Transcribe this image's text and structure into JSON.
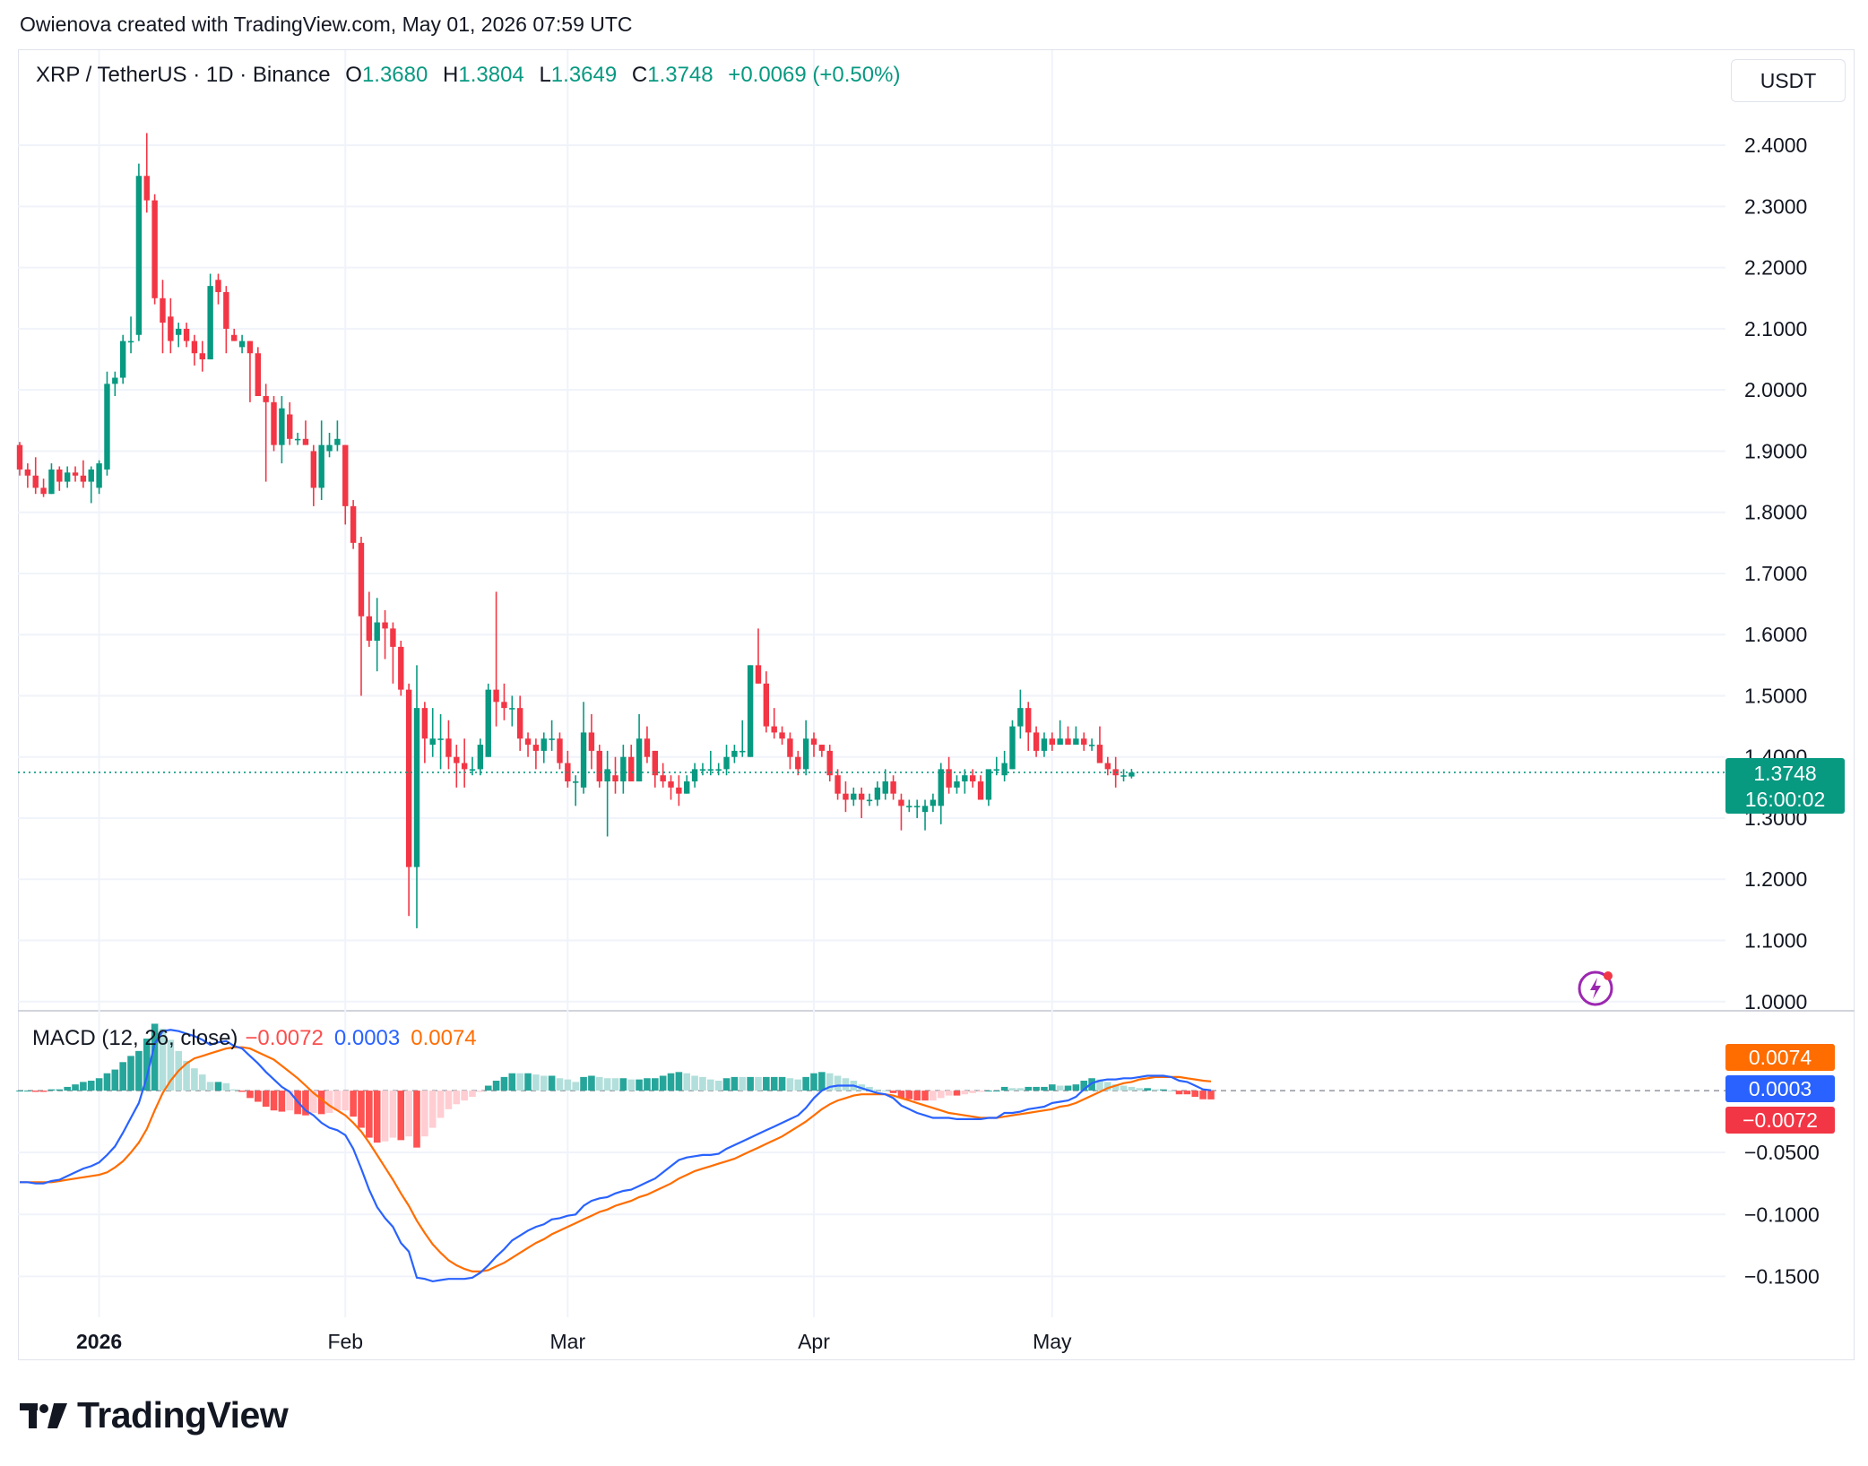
{
  "credit": "Owienova created with TradingView.com, May 01, 2026 07:59 UTC",
  "header": {
    "symbol": "XRP / TetherUS · 1D · Binance",
    "o_label": "O",
    "o_value": "1.3680",
    "h_label": "H",
    "h_value": "1.3804",
    "l_label": "L",
    "l_value": "1.3649",
    "c_label": "C",
    "c_value": "1.3748",
    "change": "+0.0069 (+0.50%)"
  },
  "currency": "USDT",
  "macd_header": {
    "title": "MACD (12, 26, close)",
    "hist": "−0.0072",
    "macd": "0.0003",
    "signal": "0.0074"
  },
  "last_price": {
    "price": "1.3748",
    "countdown": "16:00:02"
  },
  "macd_badges": {
    "signal": "0.0074",
    "macd": "0.0003",
    "hist": "−0.0072"
  },
  "brand": "TradingView",
  "colors": {
    "up": "#089981",
    "down": "#f23645",
    "macd": "#2962ff",
    "signal": "#ff6d00",
    "hist_up_strong": "#26a69a",
    "hist_up_weak": "#b2dfdb",
    "hist_down_strong": "#ff5252",
    "hist_down_weak": "#ffcdd2"
  },
  "chart_data": {
    "type": "candlestick",
    "title": "XRP / TetherUS · 1D · Binance",
    "price_axis": {
      "ticks": [
        "2.4000",
        "2.3000",
        "2.2000",
        "2.1000",
        "2.0000",
        "1.9000",
        "1.8000",
        "1.7000",
        "1.6000",
        "1.5000",
        "1.4000",
        "1.3000",
        "1.2000",
        "1.1000",
        "1.0000"
      ],
      "range": [
        0.985,
        2.535
      ]
    },
    "macd_axis": {
      "ticks": [
        "−0.0500",
        "−0.1000",
        "−0.1500"
      ],
      "range": [
        -0.183,
        0.063
      ]
    },
    "x_ticks": [
      {
        "label": "2026",
        "date": "2026-01-01",
        "bold": true
      },
      {
        "label": "Feb",
        "date": "2026-02-01"
      },
      {
        "label": "Mar",
        "date": "2026-03-01"
      },
      {
        "label": "Apr",
        "date": "2026-04-01"
      },
      {
        "label": "May",
        "date": "2026-05-01"
      }
    ],
    "first_date": "2025-12-22",
    "ohlc": [
      [
        1.91,
        1.915,
        1.86,
        1.87
      ],
      [
        1.87,
        1.88,
        1.84,
        1.86
      ],
      [
        1.86,
        1.89,
        1.83,
        1.84
      ],
      [
        1.84,
        1.855,
        1.825,
        1.83
      ],
      [
        1.83,
        1.88,
        1.83,
        1.87
      ],
      [
        1.87,
        1.875,
        1.835,
        1.85
      ],
      [
        1.85,
        1.875,
        1.84,
        1.865
      ],
      [
        1.865,
        1.875,
        1.85,
        1.86
      ],
      [
        1.86,
        1.885,
        1.84,
        1.85
      ],
      [
        1.85,
        1.875,
        1.815,
        1.87
      ],
      [
        1.84,
        1.885,
        1.83,
        1.88
      ],
      [
        1.87,
        2.03,
        1.86,
        2.01
      ],
      [
        2.01,
        2.03,
        1.99,
        2.02
      ],
      [
        2.02,
        2.09,
        2.01,
        2.08
      ],
      [
        2.08,
        2.12,
        2.06,
        2.08
      ],
      [
        2.09,
        2.37,
        2.08,
        2.35
      ],
      [
        2.35,
        2.42,
        2.29,
        2.31
      ],
      [
        2.31,
        2.32,
        2.14,
        2.15
      ],
      [
        2.15,
        2.18,
        2.06,
        2.11
      ],
      [
        2.12,
        2.15,
        2.06,
        2.08
      ],
      [
        2.09,
        2.11,
        2.07,
        2.1
      ],
      [
        2.1,
        2.11,
        2.07,
        2.08
      ],
      [
        2.08,
        2.09,
        2.04,
        2.06
      ],
      [
        2.06,
        2.08,
        2.03,
        2.05
      ],
      [
        2.05,
        2.19,
        2.05,
        2.17
      ],
      [
        2.18,
        2.19,
        2.14,
        2.16
      ],
      [
        2.16,
        2.17,
        2.06,
        2.1
      ],
      [
        2.09,
        2.1,
        2.08,
        2.08
      ],
      [
        2.07,
        2.09,
        2.06,
        2.08
      ],
      [
        2.08,
        2.08,
        1.98,
        2.06
      ],
      [
        2.06,
        2.07,
        1.99,
        1.99
      ],
      [
        1.99,
        2.01,
        1.85,
        1.98
      ],
      [
        1.98,
        1.99,
        1.9,
        1.91
      ],
      [
        1.91,
        1.99,
        1.88,
        1.97
      ],
      [
        1.96,
        1.98,
        1.91,
        1.92
      ],
      [
        1.92,
        1.93,
        1.91,
        1.92
      ],
      [
        1.92,
        1.95,
        1.91,
        1.91
      ],
      [
        1.9,
        1.91,
        1.81,
        1.84
      ],
      [
        1.84,
        1.95,
        1.82,
        1.91
      ],
      [
        1.9,
        1.93,
        1.89,
        1.91
      ],
      [
        1.91,
        1.95,
        1.9,
        1.92
      ],
      [
        1.91,
        1.91,
        1.78,
        1.81
      ],
      [
        1.81,
        1.82,
        1.74,
        1.75
      ],
      [
        1.75,
        1.76,
        1.5,
        1.63
      ],
      [
        1.63,
        1.67,
        1.58,
        1.59
      ],
      [
        1.59,
        1.66,
        1.54,
        1.62
      ],
      [
        1.62,
        1.64,
        1.56,
        1.61
      ],
      [
        1.61,
        1.62,
        1.52,
        1.58
      ],
      [
        1.58,
        1.59,
        1.5,
        1.51
      ],
      [
        1.51,
        1.52,
        1.14,
        1.22
      ],
      [
        1.22,
        1.55,
        1.12,
        1.48
      ],
      [
        1.48,
        1.49,
        1.39,
        1.43
      ],
      [
        1.42,
        1.48,
        1.4,
        1.43
      ],
      [
        1.43,
        1.47,
        1.38,
        1.43
      ],
      [
        1.43,
        1.46,
        1.38,
        1.4
      ],
      [
        1.4,
        1.42,
        1.35,
        1.39
      ],
      [
        1.39,
        1.43,
        1.35,
        1.38
      ],
      [
        1.38,
        1.4,
        1.37,
        1.38
      ],
      [
        1.38,
        1.43,
        1.37,
        1.42
      ],
      [
        1.4,
        1.52,
        1.4,
        1.51
      ],
      [
        1.51,
        1.67,
        1.45,
        1.49
      ],
      [
        1.49,
        1.52,
        1.46,
        1.48
      ],
      [
        1.48,
        1.5,
        1.45,
        1.48
      ],
      [
        1.48,
        1.5,
        1.41,
        1.43
      ],
      [
        1.43,
        1.44,
        1.4,
        1.42
      ],
      [
        1.42,
        1.43,
        1.38,
        1.41
      ],
      [
        1.41,
        1.44,
        1.39,
        1.43
      ],
      [
        1.43,
        1.46,
        1.41,
        1.43
      ],
      [
        1.43,
        1.44,
        1.38,
        1.39
      ],
      [
        1.39,
        1.41,
        1.35,
        1.36
      ],
      [
        1.36,
        1.37,
        1.32,
        1.36
      ],
      [
        1.35,
        1.49,
        1.34,
        1.44
      ],
      [
        1.44,
        1.47,
        1.38,
        1.41
      ],
      [
        1.41,
        1.42,
        1.35,
        1.36
      ],
      [
        1.36,
        1.41,
        1.27,
        1.38
      ],
      [
        1.37,
        1.4,
        1.34,
        1.36
      ],
      [
        1.36,
        1.42,
        1.34,
        1.4
      ],
      [
        1.4,
        1.42,
        1.36,
        1.36
      ],
      [
        1.36,
        1.47,
        1.36,
        1.43
      ],
      [
        1.43,
        1.45,
        1.39,
        1.4
      ],
      [
        1.41,
        1.41,
        1.35,
        1.37
      ],
      [
        1.37,
        1.39,
        1.35,
        1.36
      ],
      [
        1.36,
        1.37,
        1.33,
        1.35
      ],
      [
        1.35,
        1.37,
        1.32,
        1.34
      ],
      [
        1.34,
        1.37,
        1.34,
        1.36
      ],
      [
        1.36,
        1.39,
        1.35,
        1.38
      ],
      [
        1.38,
        1.39,
        1.37,
        1.38
      ],
      [
        1.38,
        1.41,
        1.37,
        1.38
      ],
      [
        1.38,
        1.39,
        1.37,
        1.38
      ],
      [
        1.38,
        1.42,
        1.37,
        1.4
      ],
      [
        1.4,
        1.42,
        1.39,
        1.41
      ],
      [
        1.41,
        1.46,
        1.4,
        1.41
      ],
      [
        1.4,
        1.55,
        1.4,
        1.55
      ],
      [
        1.55,
        1.61,
        1.52,
        1.52
      ],
      [
        1.52,
        1.54,
        1.44,
        1.45
      ],
      [
        1.45,
        1.48,
        1.43,
        1.44
      ],
      [
        1.44,
        1.45,
        1.42,
        1.43
      ],
      [
        1.43,
        1.44,
        1.38,
        1.4
      ],
      [
        1.4,
        1.41,
        1.37,
        1.38
      ],
      [
        1.38,
        1.46,
        1.37,
        1.43
      ],
      [
        1.43,
        1.44,
        1.4,
        1.42
      ],
      [
        1.42,
        1.42,
        1.4,
        1.41
      ],
      [
        1.41,
        1.42,
        1.36,
        1.37
      ],
      [
        1.37,
        1.38,
        1.33,
        1.34
      ],
      [
        1.34,
        1.36,
        1.31,
        1.33
      ],
      [
        1.33,
        1.35,
        1.32,
        1.34
      ],
      [
        1.34,
        1.35,
        1.3,
        1.33
      ],
      [
        1.33,
        1.34,
        1.32,
        1.33
      ],
      [
        1.33,
        1.36,
        1.32,
        1.35
      ],
      [
        1.34,
        1.38,
        1.33,
        1.36
      ],
      [
        1.36,
        1.37,
        1.33,
        1.34
      ],
      [
        1.33,
        1.34,
        1.28,
        1.32
      ],
      [
        1.32,
        1.33,
        1.31,
        1.32
      ],
      [
        1.32,
        1.33,
        1.3,
        1.32
      ],
      [
        1.31,
        1.33,
        1.28,
        1.32
      ],
      [
        1.32,
        1.34,
        1.31,
        1.33
      ],
      [
        1.32,
        1.39,
        1.29,
        1.38
      ],
      [
        1.38,
        1.4,
        1.34,
        1.35
      ],
      [
        1.35,
        1.37,
        1.34,
        1.36
      ],
      [
        1.36,
        1.38,
        1.34,
        1.37
      ],
      [
        1.37,
        1.38,
        1.35,
        1.36
      ],
      [
        1.36,
        1.37,
        1.33,
        1.33
      ],
      [
        1.33,
        1.37,
        1.32,
        1.38
      ],
      [
        1.38,
        1.4,
        1.37,
        1.38
      ],
      [
        1.37,
        1.41,
        1.36,
        1.39
      ],
      [
        1.38,
        1.46,
        1.38,
        1.45
      ],
      [
        1.45,
        1.51,
        1.43,
        1.48
      ],
      [
        1.48,
        1.49,
        1.41,
        1.44
      ],
      [
        1.44,
        1.45,
        1.4,
        1.41
      ],
      [
        1.41,
        1.44,
        1.4,
        1.43
      ],
      [
        1.43,
        1.44,
        1.41,
        1.42
      ],
      [
        1.42,
        1.46,
        1.42,
        1.43
      ],
      [
        1.43,
        1.45,
        1.42,
        1.42
      ],
      [
        1.42,
        1.45,
        1.42,
        1.43
      ],
      [
        1.43,
        1.44,
        1.41,
        1.42
      ],
      [
        1.42,
        1.43,
        1.41,
        1.42
      ],
      [
        1.42,
        1.45,
        1.39,
        1.39
      ],
      [
        1.39,
        1.4,
        1.37,
        1.38
      ],
      [
        1.38,
        1.4,
        1.35,
        1.37
      ],
      [
        1.37,
        1.38,
        1.36,
        1.37
      ],
      [
        1.368,
        1.3804,
        1.3649,
        1.3748
      ]
    ],
    "macd_series": {
      "macd": [
        -0.074,
        -0.074,
        -0.075,
        -0.075,
        -0.073,
        -0.072,
        -0.069,
        -0.066,
        -0.063,
        -0.061,
        -0.058,
        -0.052,
        -0.045,
        -0.034,
        -0.022,
        -0.01,
        0.011,
        0.038,
        0.048,
        0.049,
        0.048,
        0.046,
        0.044,
        0.041,
        0.037,
        0.039,
        0.04,
        0.036,
        0.034,
        0.028,
        0.022,
        0.015,
        0.009,
        0.003,
        -0.001,
        -0.009,
        -0.016,
        -0.02,
        -0.026,
        -0.03,
        -0.032,
        -0.036,
        -0.047,
        -0.063,
        -0.08,
        -0.094,
        -0.103,
        -0.11,
        -0.123,
        -0.13,
        -0.151,
        -0.152,
        -0.154,
        -0.153,
        -0.152,
        -0.152,
        -0.152,
        -0.151,
        -0.147,
        -0.141,
        -0.134,
        -0.128,
        -0.121,
        -0.117,
        -0.113,
        -0.11,
        -0.108,
        -0.104,
        -0.103,
        -0.101,
        -0.1,
        -0.093,
        -0.089,
        -0.087,
        -0.086,
        -0.083,
        -0.081,
        -0.08,
        -0.077,
        -0.074,
        -0.071,
        -0.066,
        -0.061,
        -0.056,
        -0.054,
        -0.053,
        -0.052,
        -0.052,
        -0.051,
        -0.047,
        -0.044,
        -0.041,
        -0.038,
        -0.035,
        -0.032,
        -0.029,
        -0.026,
        -0.023,
        -0.02,
        -0.014,
        -0.006,
        0.0,
        0.003,
        0.004,
        0.004,
        0.004,
        0.002,
        0.0,
        -0.002,
        -0.003,
        -0.006,
        -0.012,
        -0.015,
        -0.018,
        -0.02,
        -0.022,
        -0.022,
        -0.022,
        -0.023,
        -0.023,
        -0.023,
        -0.023,
        -0.022,
        -0.022,
        -0.018,
        -0.018,
        -0.017,
        -0.015,
        -0.014,
        -0.013,
        -0.01,
        -0.009,
        -0.008,
        -0.005,
        0.001,
        0.006,
        0.008,
        0.009,
        0.009,
        0.01,
        0.01,
        0.011,
        0.012,
        0.012,
        0.012,
        0.011,
        0.008,
        0.007,
        0.004,
        0.001,
        0.0003
      ],
      "signal": [
        -0.074,
        -0.074,
        -0.074,
        -0.074,
        -0.074,
        -0.073,
        -0.072,
        -0.071,
        -0.07,
        -0.069,
        -0.068,
        -0.066,
        -0.062,
        -0.057,
        -0.05,
        -0.042,
        -0.031,
        -0.016,
        -0.002,
        0.008,
        0.016,
        0.022,
        0.026,
        0.028,
        0.03,
        0.032,
        0.034,
        0.035,
        0.035,
        0.034,
        0.031,
        0.028,
        0.025,
        0.02,
        0.015,
        0.01,
        0.004,
        -0.002,
        -0.007,
        -0.012,
        -0.016,
        -0.02,
        -0.026,
        -0.033,
        -0.042,
        -0.052,
        -0.062,
        -0.072,
        -0.083,
        -0.093,
        -0.105,
        -0.115,
        -0.124,
        -0.131,
        -0.137,
        -0.141,
        -0.144,
        -0.146,
        -0.146,
        -0.145,
        -0.142,
        -0.139,
        -0.135,
        -0.131,
        -0.127,
        -0.123,
        -0.12,
        -0.116,
        -0.113,
        -0.11,
        -0.107,
        -0.104,
        -0.101,
        -0.098,
        -0.096,
        -0.093,
        -0.091,
        -0.089,
        -0.086,
        -0.084,
        -0.081,
        -0.078,
        -0.075,
        -0.071,
        -0.068,
        -0.065,
        -0.063,
        -0.061,
        -0.059,
        -0.057,
        -0.055,
        -0.052,
        -0.049,
        -0.046,
        -0.043,
        -0.04,
        -0.037,
        -0.033,
        -0.029,
        -0.025,
        -0.02,
        -0.015,
        -0.011,
        -0.008,
        -0.006,
        -0.004,
        -0.003,
        -0.003,
        -0.003,
        -0.003,
        -0.004,
        -0.006,
        -0.008,
        -0.01,
        -0.012,
        -0.014,
        -0.016,
        -0.018,
        -0.019,
        -0.02,
        -0.021,
        -0.022,
        -0.022,
        -0.022,
        -0.021,
        -0.02,
        -0.019,
        -0.018,
        -0.017,
        -0.016,
        -0.015,
        -0.013,
        -0.012,
        -0.01,
        -0.007,
        -0.004,
        -0.001,
        0.002,
        0.004,
        0.006,
        0.007,
        0.009,
        0.01,
        0.011,
        0.011,
        0.011,
        0.011,
        0.01,
        0.009,
        0.008,
        0.0074
      ]
    }
  }
}
